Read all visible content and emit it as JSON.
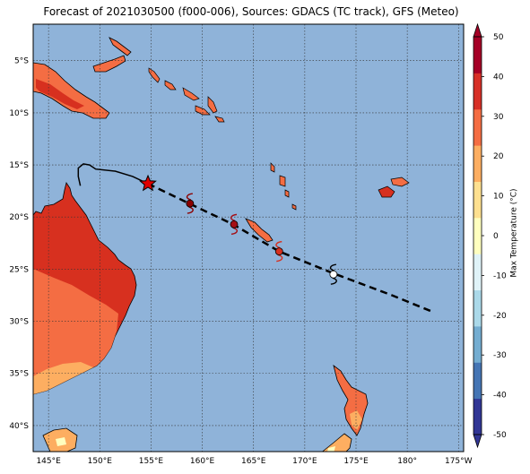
{
  "title": "Forecast of 2021030500 (f000-006), Sources: GDACS (TC track), GFS (Meteo)",
  "map": {
    "lon_range": [
      143.5,
      185.5
    ],
    "lat_range": [
      -42.5,
      -1.5
    ],
    "lon_ticks": [
      {
        "value": 145,
        "label": "145°E"
      },
      {
        "value": 150,
        "label": "150°E"
      },
      {
        "value": 155,
        "label": "155°E"
      },
      {
        "value": 160,
        "label": "160°E"
      },
      {
        "value": 165,
        "label": "165°E"
      },
      {
        "value": 170,
        "label": "170°E"
      },
      {
        "value": 175,
        "label": "175°E"
      },
      {
        "value": 180,
        "label": "180°"
      },
      {
        "value": 185,
        "label": "175°W"
      }
    ],
    "lat_ticks": [
      {
        "value": -5,
        "label": "5°S"
      },
      {
        "value": -10,
        "label": "10°S"
      },
      {
        "value": -15,
        "label": "15°S"
      },
      {
        "value": -20,
        "label": "20°S"
      },
      {
        "value": -25,
        "label": "25°S"
      },
      {
        "value": -30,
        "label": "30°S"
      },
      {
        "value": -35,
        "label": "35°S"
      },
      {
        "value": -40,
        "label": "40°S"
      }
    ],
    "ocean_color": "#8fb3d9",
    "gridlines": true
  },
  "tc_track": {
    "observed": [
      [
        148.1,
        -17.0
      ],
      [
        147.9,
        -16.1
      ],
      [
        147.9,
        -15.3
      ],
      [
        148.4,
        -14.9
      ],
      [
        149.0,
        -15.0
      ],
      [
        149.6,
        -15.4
      ],
      [
        151.5,
        -15.6
      ],
      [
        153.2,
        -16.1
      ],
      [
        154.7,
        -16.8
      ]
    ],
    "current_position": [
      154.7,
      -16.8
    ],
    "forecast": [
      [
        154.7,
        -16.8
      ],
      [
        158.5,
        -18.6
      ],
      [
        163.0,
        -20.7
      ],
      [
        167.5,
        -23.3
      ],
      [
        172.8,
        -25.4
      ],
      [
        178.5,
        -27.5
      ],
      [
        182.5,
        -29.1
      ]
    ],
    "forecast_symbols": [
      {
        "lon": 158.8,
        "lat": -18.7,
        "color": "#8b0000"
      },
      {
        "lon": 163.1,
        "lat": -20.7,
        "color": "#a50f15"
      },
      {
        "lon": 167.5,
        "lat": -23.3,
        "color": "#d7301f"
      },
      {
        "lon": 172.8,
        "lat": -25.5,
        "color": "#ffffff"
      }
    ]
  },
  "colorbar": {
    "label": "Max Temperature (°C)",
    "min": -50,
    "max": 50,
    "ticks": [
      50,
      40,
      30,
      20,
      10,
      0,
      -10,
      -20,
      -30,
      -40,
      -50
    ],
    "colors": [
      "#313695",
      "#4575b4",
      "#74add1",
      "#abd9e9",
      "#e0f3f8",
      "#ffffbf",
      "#fee090",
      "#fdae61",
      "#f46d43",
      "#d73027",
      "#a50026"
    ]
  }
}
